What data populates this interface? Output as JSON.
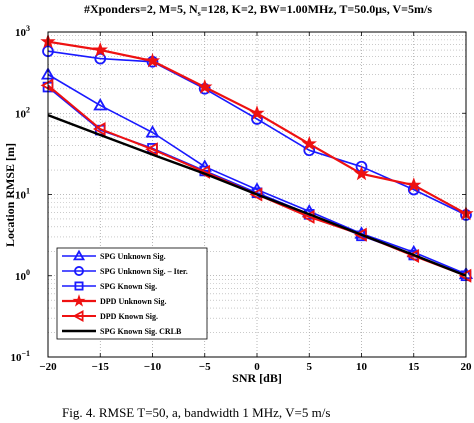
{
  "chart_data": {
    "type": "line",
    "title": "#Xponders=2, M=5, N",
    "title_sub": "s",
    "title_rest": "=128, K=2, BW=1.00MHz, T=50.0μs, V=5m/s",
    "xlabel": "SNR [dB]",
    "ylabel": "Location RMSE [m]",
    "x_ticks": [
      "−20",
      "−15",
      "−10",
      "−5",
      "0",
      "5",
      "10",
      "15",
      "20"
    ],
    "y_tick_bases": [
      "10",
      "10",
      "10",
      "10",
      "10"
    ],
    "y_tick_exps": [
      "−1",
      "0",
      "1",
      "2",
      "3"
    ],
    "xlim": [
      -20,
      20
    ],
    "ylim": [
      0.1,
      1000
    ],
    "y_scale": "log",
    "grid": true,
    "legend_position": "lower-left",
    "caption": "Fig. 4. RMSE T=50, a, bandwidth 1 MHz, V=5 m/s",
    "x": [
      -20,
      -15,
      -10,
      -5,
      0,
      5,
      10,
      15,
      20
    ],
    "series": [
      {
        "name": "SPG Unknown Sig.",
        "color": "#1a1aff",
        "marker": "triangle",
        "width": 1.6,
        "values": [
          300,
          125,
          58,
          22,
          11.5,
          6.2,
          3.3,
          1.95,
          1.05
        ]
      },
      {
        "name": "SPG Unknown Sig. – Iter.",
        "color": "#1a1aff",
        "marker": "circle",
        "width": 1.6,
        "values": [
          580,
          470,
          430,
          200,
          85,
          35,
          22,
          11.5,
          5.6
        ]
      },
      {
        "name": "SPG Known Sig.",
        "color": "#1a1aff",
        "marker": "square",
        "width": 1.6,
        "values": [
          210,
          62,
          37,
          19.5,
          10.5,
          5.7,
          3.1,
          1.8,
          1.0
        ]
      },
      {
        "name": "DPD Unknown Sig.",
        "color": "#ee1111",
        "marker": "star",
        "width": 2.2,
        "values": [
          760,
          600,
          440,
          210,
          100,
          42,
          18,
          13,
          5.8
        ]
      },
      {
        "name": "DPD Known Sig.",
        "color": "#ee1111",
        "marker": "tri-left",
        "width": 2.0,
        "values": [
          220,
          64,
          36,
          19,
          10.0,
          5.3,
          3.2,
          1.75,
          1.0
        ]
      },
      {
        "name": "SPG Known Sig. CRLB",
        "color": "#000000",
        "marker": "none",
        "width": 2.4,
        "values": [
          95,
          54,
          31,
          18,
          10,
          5.7,
          3.2,
          1.8,
          1.0
        ]
      }
    ]
  }
}
